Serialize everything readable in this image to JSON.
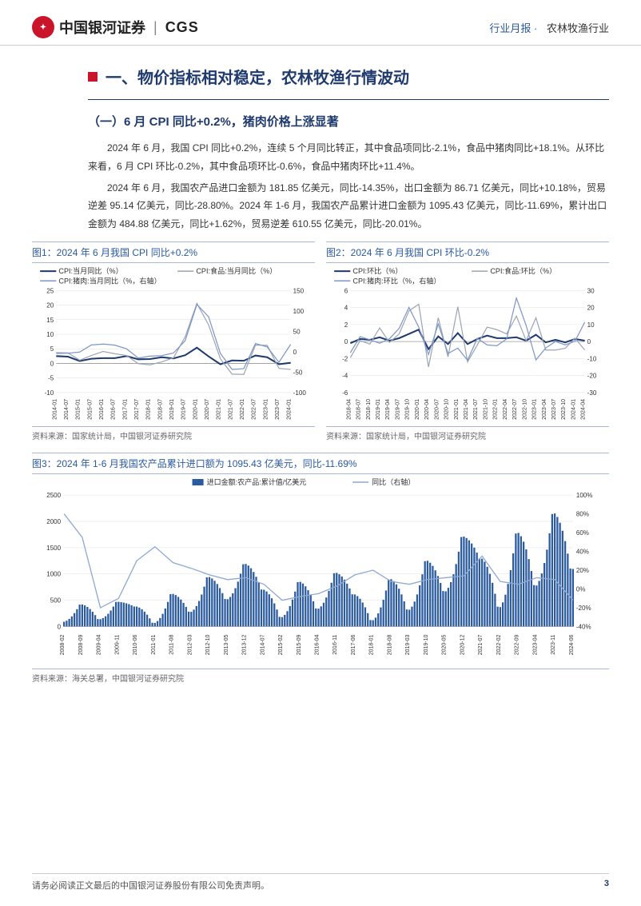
{
  "header": {
    "logo_cn": "中国银河证券",
    "logo_en": "CGS",
    "right_a": "行业月报",
    "right_b": "农林牧渔行业"
  },
  "title": "一、物价指标相对稳定，农林牧渔行情波动",
  "subtitle": "（一）6 月 CPI 同比+0.2%，猪肉价格上涨显著",
  "para1": "2024 年 6 月，我国 CPI 同比+0.2%，连续 5 个月同比转正，其中食品项同比-2.1%，食品中猪肉同比+18.1%。从环比来看，6 月 CPI 环比-0.2%，其中食品项环比-0.6%，食品中猪肉环比+11.4%。",
  "para2": "2024 年 6 月，我国农产品进口金额为 181.85 亿美元，同比-14.35%，出口金额为 86.71 亿美元，同比+10.18%，贸易逆差 95.14 亿美元，同比-28.80%。2024 年 1-6 月，我国农产品累计进口金额为 1095.43 亿美元，同比-11.69%，累计出口金额为 484.88 亿美元，同比+1.62%，贸易逆差 610.55 亿美元，同比-20.01%。",
  "chart1": {
    "title": "图1：2024 年 6 月我国 CPI 同比+0.2%",
    "source": "资料来源：国家统计局，中国银河证券研究院",
    "type": "line",
    "legend": [
      "CPI:当月同比（%）",
      "CPI:食品:当月同比（%）",
      "CPI:猪肉:当月同比（%，右轴）"
    ],
    "colors": [
      "#1f3a6e",
      "#9aa5b5",
      "#7d95c7"
    ],
    "y_left": {
      "min": -10,
      "max": 25,
      "step": 5
    },
    "y_right": {
      "min": -100,
      "max": 150,
      "step": 50
    },
    "x_labels": [
      "2014-01",
      "2014-07",
      "2015-01",
      "2015-07",
      "2016-01",
      "2016-07",
      "2017-01",
      "2017-07",
      "2018-01",
      "2018-07",
      "2019-01",
      "2019-07",
      "2020-01",
      "2020-07",
      "2021-01",
      "2021-07",
      "2022-01",
      "2022-07",
      "2023-01",
      "2023-07",
      "2024-01"
    ],
    "series_cpi": [
      2.5,
      2.3,
      0.8,
      1.6,
      1.8,
      1.8,
      2.5,
      1.4,
      1.5,
      2.1,
      1.7,
      2.8,
      5.4,
      2.4,
      -0.3,
      1.0,
      0.9,
      2.7,
      2.1,
      -0.3,
      0.2
    ],
    "series_food": [
      3.7,
      3.6,
      1.1,
      2.7,
      4.1,
      3.3,
      2.7,
      -0.1,
      -0.5,
      0.5,
      1.9,
      9.1,
      20.6,
      13.2,
      1.6,
      -3.7,
      -3.8,
      6.3,
      6.2,
      -1.7,
      -2.1
    ],
    "series_pork": [
      -4.3,
      -3.6,
      -0.8,
      16.7,
      18.8,
      16.1,
      7.1,
      -15.5,
      -10.8,
      -9.6,
      -3.2,
      27.0,
      116.0,
      85.7,
      -3.9,
      -43.5,
      -41.6,
      20.2,
      11.8,
      -26.0,
      18.1
    ],
    "grid_color": "#e0e0e0",
    "background_color": "#ffffff"
  },
  "chart2": {
    "title": "图2：2024 年 6 月我国 CPI 环比-0.2%",
    "source": "资料来源：国家统计局，中国银河证券研究院",
    "type": "line",
    "legend": [
      "CPI:环比（%）",
      "CPI:食品:环比（%）",
      "CPI:猪肉:环比（%，右轴）"
    ],
    "colors": [
      "#1f3a6e",
      "#9aa5b5",
      "#7d95c7"
    ],
    "y_left": {
      "min": -6,
      "max": 6,
      "step": 2
    },
    "y_right": {
      "min": -30,
      "max": 30,
      "step": 10
    },
    "x_labels": [
      "2018-04",
      "2018-07",
      "2018-10",
      "2019-01",
      "2019-04",
      "2019-07",
      "2019-10",
      "2020-01",
      "2020-04",
      "2020-07",
      "2020-10",
      "2021-01",
      "2021-04",
      "2021-07",
      "2021-10",
      "2022-01",
      "2022-04",
      "2022-07",
      "2022-10",
      "2023-01",
      "2023-04",
      "2023-07",
      "2023-10",
      "2024-01",
      "2024-04"
    ],
    "series_cpi": [
      -0.2,
      0.3,
      0.2,
      0.5,
      0.1,
      0.4,
      0.9,
      1.4,
      -0.9,
      0.6,
      -0.3,
      1.0,
      -0.3,
      0.3,
      0.7,
      0.4,
      0.4,
      0.5,
      0.1,
      0.8,
      -0.1,
      0.2,
      -0.1,
      0.3,
      0.1
    ],
    "series_food": [
      -1.9,
      0.1,
      -0.3,
      1.6,
      -0.1,
      0.9,
      3.6,
      4.4,
      -3.0,
      2.8,
      -1.8,
      4.1,
      -2.4,
      -0.4,
      1.7,
      1.4,
      0.9,
      3.0,
      0.1,
      2.8,
      -1.0,
      -1.0,
      -0.8,
      0.4,
      -1.0
    ],
    "series_pork": [
      -6.6,
      2.9,
      1.0,
      -1.0,
      1.6,
      7.8,
      20.1,
      8.5,
      -7.6,
      10.3,
      -7.0,
      -3.9,
      -11.0,
      1.9,
      -2.0,
      -2.5,
      1.5,
      25.6,
      9.4,
      -10.8,
      -3.8,
      0.0,
      -2.0,
      0.2,
      11.4
    ],
    "grid_color": "#e0e0e0",
    "background_color": "#ffffff"
  },
  "chart3": {
    "title": "图3：2024 年 1-6 月我国农产品累计进口额为 1095.43 亿美元，同比-11.69%",
    "source": "资料来源：海关总署，中国银河证券研究院",
    "type": "bar_line",
    "legend": [
      "进口金额:农产品:累计值/亿美元",
      "同比（右轴）"
    ],
    "colors": [
      "#2a5aa0",
      "#8fa8d4"
    ],
    "y_left": {
      "min": 0,
      "max": 2500,
      "step": 500
    },
    "y_right": {
      "min": -40,
      "max": 100,
      "step": 20,
      "format": "%"
    },
    "x_labels": [
      "2008-02",
      "2008-09",
      "2009-04",
      "2009-11",
      "2010-06",
      "2011-01",
      "2011-08",
      "2012-03",
      "2012-10",
      "2013-05",
      "2013-12",
      "2014-07",
      "2015-02",
      "2015-09",
      "2016-04",
      "2016-11",
      "2017-06",
      "2018-01",
      "2018-08",
      "2019-03",
      "2019-10",
      "2020-05",
      "2020-12",
      "2021-07",
      "2022-02",
      "2022-09",
      "2023-04",
      "2023-11",
      "2024-06"
    ],
    "bars": [
      90,
      420,
      140,
      470,
      380,
      70,
      620,
      280,
      940,
      520,
      1190,
      700,
      180,
      850,
      340,
      1020,
      610,
      120,
      900,
      320,
      1250,
      670,
      1710,
      1290,
      370,
      1780,
      780,
      2150,
      1095
    ],
    "line_pct": [
      80,
      55,
      -20,
      -10,
      30,
      45,
      28,
      22,
      15,
      10,
      12,
      5,
      -12,
      -8,
      -5,
      3,
      15,
      20,
      8,
      5,
      10,
      12,
      14,
      35,
      8,
      5,
      12,
      10,
      -11.69
    ],
    "grid_color": "#e0e0e0",
    "background_color": "#ffffff"
  },
  "footer": {
    "disclaimer": "请务必阅读正文最后的中国银河证券股份有限公司免责声明。",
    "page": "3"
  }
}
